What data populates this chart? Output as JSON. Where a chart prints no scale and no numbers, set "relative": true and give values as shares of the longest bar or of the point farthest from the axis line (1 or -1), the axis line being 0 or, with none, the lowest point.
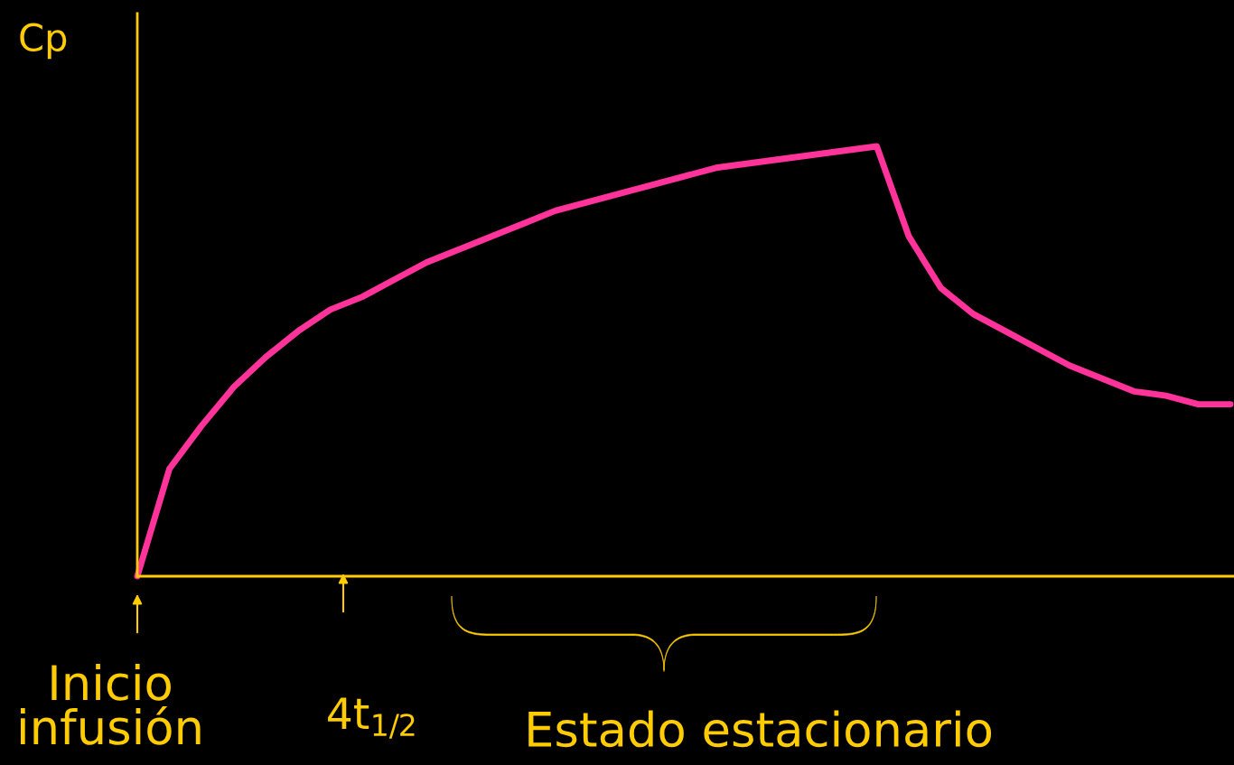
{
  "chart_data": {
    "type": "line",
    "relative": true,
    "ylabel": "Cp",
    "categories": [
      null,
      null,
      null,
      null,
      null,
      null,
      null,
      null,
      null,
      null,
      null,
      null,
      null,
      null,
      null,
      null,
      null,
      null,
      null,
      null,
      null,
      null,
      null,
      null,
      null,
      null,
      null,
      null,
      null,
      null,
      null,
      null,
      null,
      null,
      null
    ],
    "series": [
      {
        "color": "#ff3399",
        "values": [
          0,
          0.25,
          0.35,
          0.44,
          0.51,
          0.57,
          0.62,
          0.65,
          0.69,
          0.73,
          0.76,
          0.79,
          0.82,
          0.85,
          0.87,
          0.89,
          0.91,
          0.93,
          0.95,
          0.96,
          0.97,
          0.98,
          0.99,
          1,
          0.79,
          0.67,
          0.61,
          0.57,
          0.53,
          0.49,
          0.46,
          0.43,
          0.42,
          0.4,
          0.4
        ]
      }
    ],
    "annotations": [
      "Inicio\ninfusión",
      "4t$_{1/2}$",
      "Estado estacionario"
    ],
    "legend": false,
    "marker": "none",
    "line_style": "solid"
  }
}
